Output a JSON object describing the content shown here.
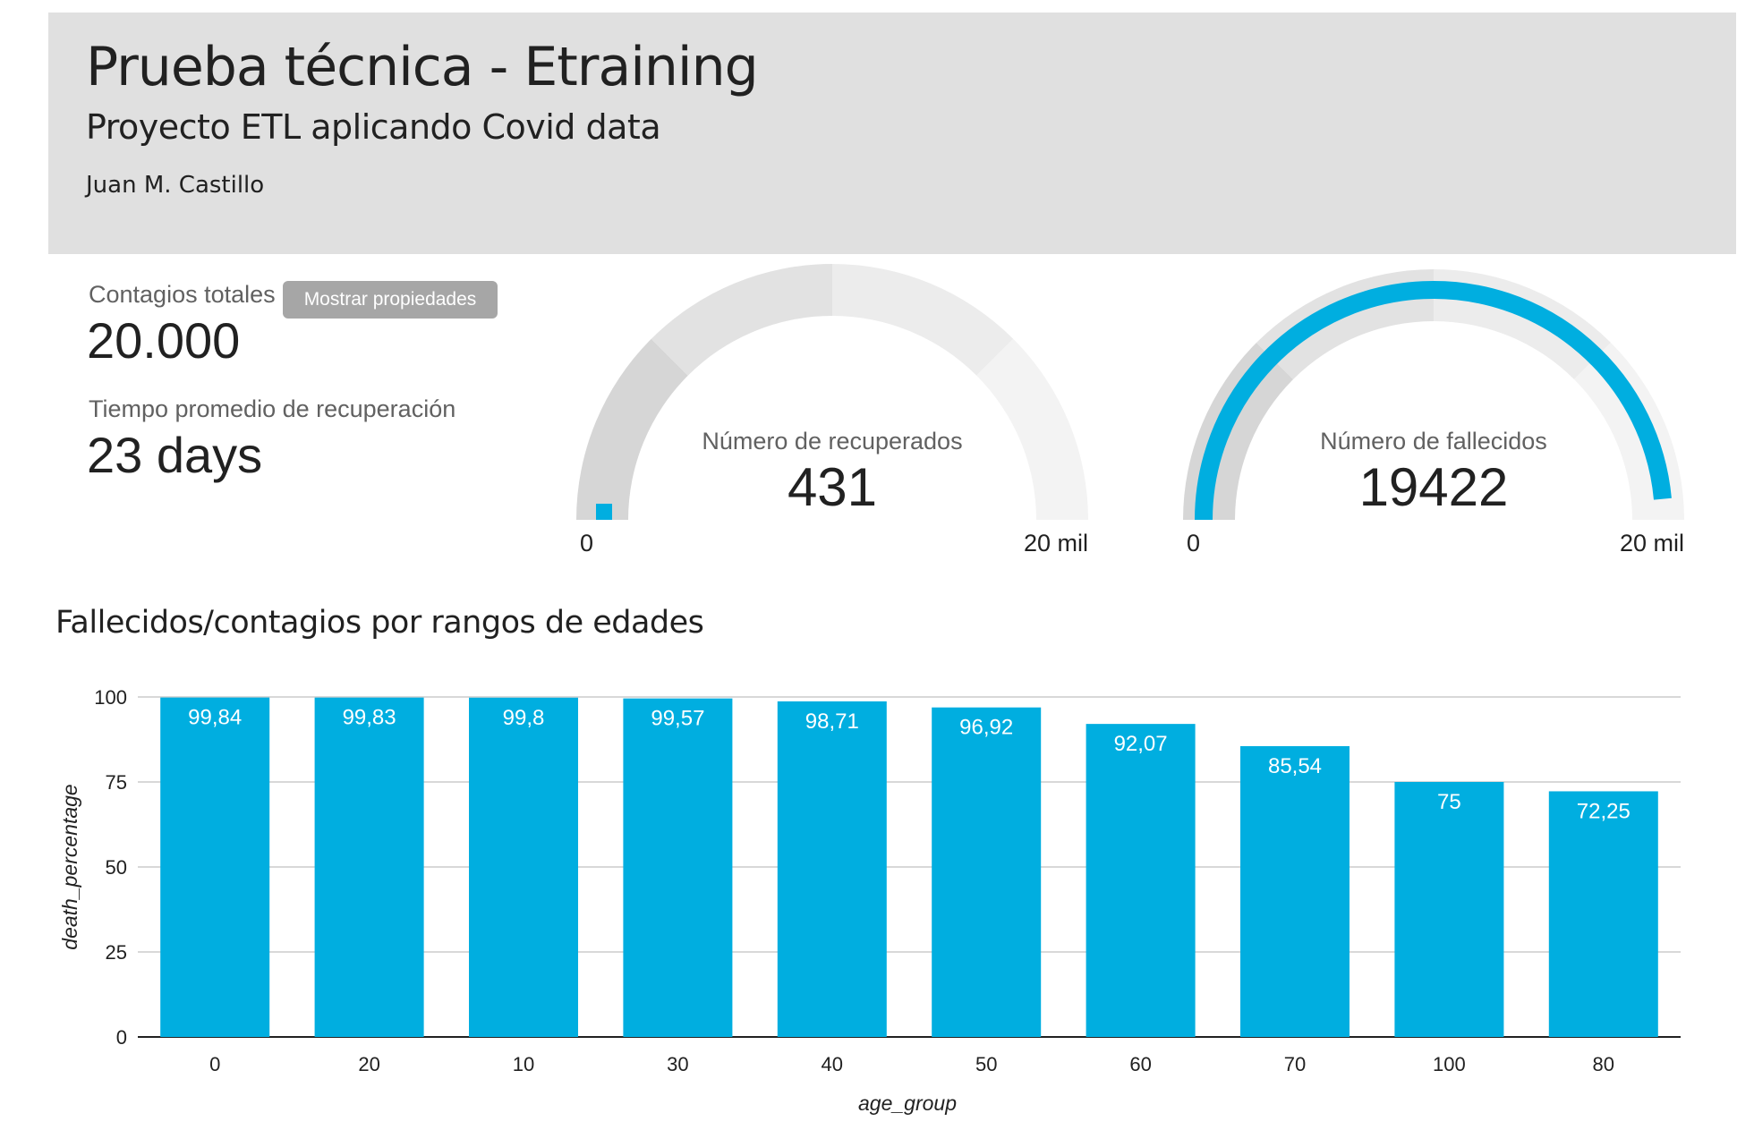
{
  "header": {
    "title": "Prueba técnica - Etraining",
    "subtitle": "Proyecto ETL aplicando Covid data",
    "author": "Juan M. Castillo"
  },
  "kpis": {
    "contagios_label": "Contagios totales",
    "contagios_value": "20.000",
    "tiempo_label": "Tiempo promedio de recuperación",
    "tiempo_value": "23 days"
  },
  "tooltip": "Mostrar propiedades",
  "gauges": [
    {
      "label": "Número de recuperados",
      "value": "431",
      "min": "0",
      "max": "20 mil",
      "value_num": 431,
      "max_num": 20000
    },
    {
      "label": "Número de fallecidos",
      "value": "19422",
      "min": "0",
      "max": "20 mil",
      "value_num": 19422,
      "max_num": 20000
    }
  ],
  "colors": {
    "accent": "#00aee0",
    "gauge_band_1": "#d6d6d6",
    "gauge_band_2": "#e2e2e2",
    "gauge_band_3": "#ececec",
    "gauge_band_4": "#f3f3f3",
    "grid": "#cccccc"
  },
  "chart_data": {
    "type": "bar",
    "title": "Fallecidos/contagios por rangos de edades",
    "xlabel": "age_group",
    "ylabel": "death_percentage",
    "categories": [
      "0",
      "20",
      "10",
      "30",
      "40",
      "50",
      "60",
      "70",
      "100",
      "80"
    ],
    "values": [
      99.84,
      99.83,
      99.8,
      99.57,
      98.71,
      96.92,
      92.07,
      85.54,
      75,
      72.25
    ],
    "value_labels": [
      "99,84",
      "99,83",
      "99,8",
      "99,57",
      "98,71",
      "96,92",
      "92,07",
      "85,54",
      "75",
      "72,25"
    ],
    "yticks": [
      "0",
      "25",
      "50",
      "75",
      "100"
    ],
    "ytick_values": [
      0,
      25,
      50,
      75,
      100
    ],
    "ylim": [
      0,
      100
    ],
    "grid": true
  }
}
